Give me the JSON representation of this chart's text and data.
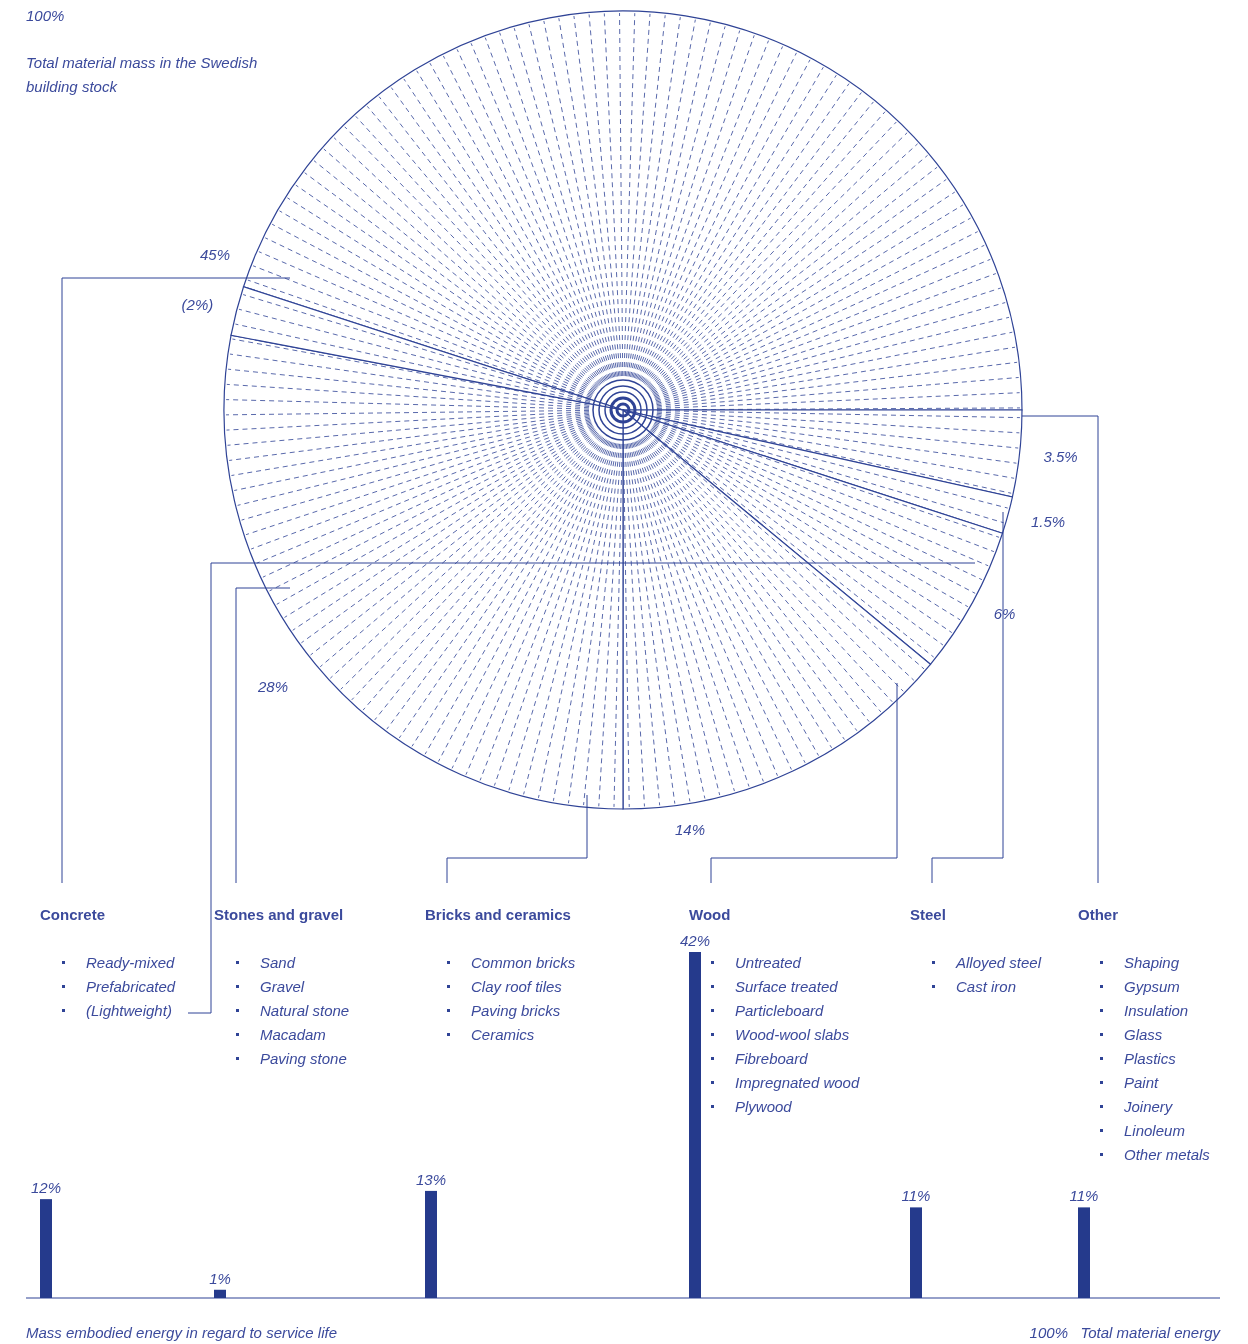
{
  "chart_data": [
    {
      "type": "pie",
      "title": "100%",
      "subtitle": "Total material mass in the Swedish building stock",
      "categories": [
        null,
        null,
        null,
        null,
        null,
        null,
        null
      ],
      "values": [
        45,
        3.5,
        1.5,
        6,
        14,
        28,
        2
      ],
      "value_labels": [
        "45%",
        "3.5%",
        "1.5%",
        "6%",
        "14%",
        "28%",
        "(2%)"
      ],
      "colors": [
        "#ffffff",
        "#ffffff",
        "#ffffff",
        "#ffffff",
        "#ffffff",
        "#ffffff",
        "#ffffff"
      ],
      "annotations": [
        "Ready-mixed\nPrefabricated\n(Lightweight)",
        "Sand\nGravel\nNatural stone\nMacadam\nPaving stone",
        "Common bricks\nClay roof tiles\nPaving bricks\nCeramics",
        "Untreated\nSurface treated\nParticleboard\nWood-wool slabs\nFibreboard\nImpregnated wood\nPlywood",
        "Alloyed steel\nCast iron",
        "Shaping\nGypsum\nInsulation\nGlass\nPlastics\nPaint\nJoinery\nLinoleum\nOther metals"
      ]
    },
    {
      "type": "bar",
      "xlabel": "Mass embodied energy in regard to service life",
      "categories": [
        "Concrete",
        "Stones and gravel",
        "Bricks and ceramics",
        "Wood",
        "Steel",
        "Other"
      ],
      "values": [
        12,
        1,
        13,
        42,
        11,
        11
      ],
      "value_labels": [
        "12%",
        "1%",
        "13%",
        "42%",
        "11%",
        "11%"
      ],
      "color": "#253a8c",
      "annotations": [
        "100%   Total material energy"
      ]
    }
  ]
}
